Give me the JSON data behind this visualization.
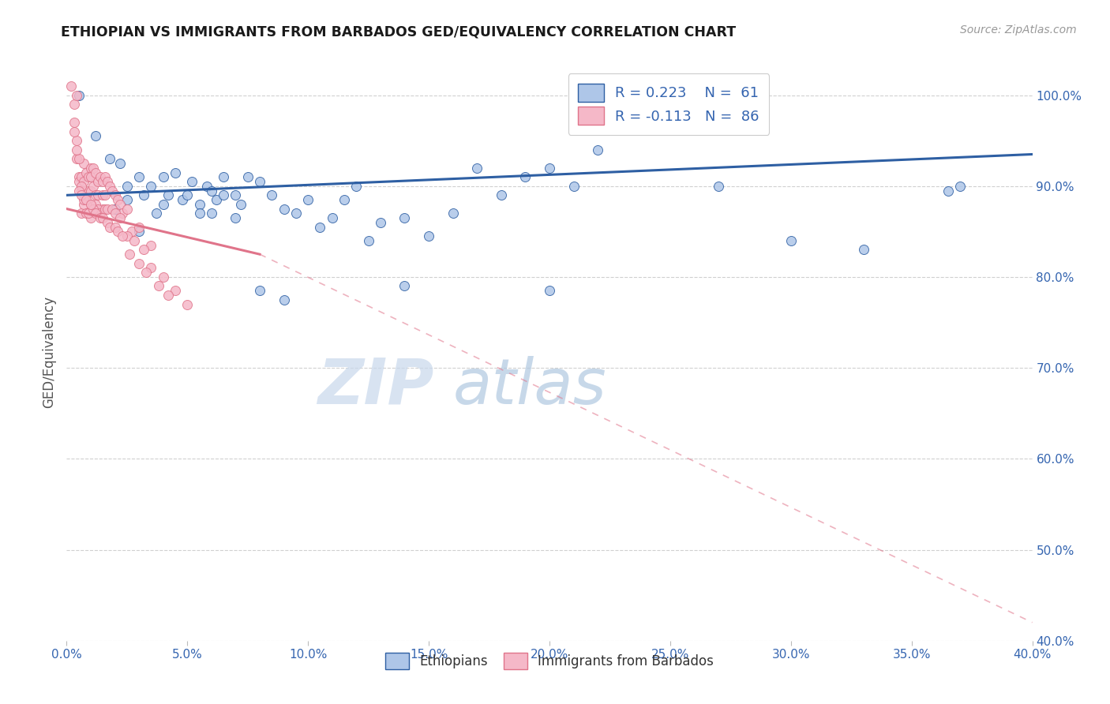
{
  "title": "ETHIOPIAN VS IMMIGRANTS FROM BARBADOS GED/EQUIVALENCY CORRELATION CHART",
  "source": "Source: ZipAtlas.com",
  "ylabel": "GED/Equivalency",
  "yticks": [
    40.0,
    50.0,
    60.0,
    70.0,
    80.0,
    90.0,
    100.0
  ],
  "xticks": [
    0.0,
    5.0,
    10.0,
    15.0,
    20.0,
    25.0,
    30.0,
    35.0,
    40.0
  ],
  "xlim": [
    0.0,
    40.0
  ],
  "ylim": [
    40.0,
    103.5
  ],
  "blue_color": "#aec6e8",
  "pink_color": "#f5b8c8",
  "blue_line_color": "#2e5fa3",
  "pink_line_color": "#e0748a",
  "blue_trend_x0": 0.0,
  "blue_trend_y0": 89.0,
  "blue_trend_x1": 40.0,
  "blue_trend_y1": 93.5,
  "pink_solid_x0": 0.0,
  "pink_solid_y0": 87.5,
  "pink_solid_x1": 8.0,
  "pink_solid_y1": 82.5,
  "pink_dash_x0": 8.0,
  "pink_dash_y0": 82.5,
  "pink_dash_x1": 40.0,
  "pink_dash_y1": 42.0,
  "blue_x": [
    0.5,
    1.2,
    1.8,
    2.2,
    2.5,
    2.5,
    3.0,
    3.2,
    3.5,
    3.7,
    4.0,
    4.2,
    4.5,
    4.8,
    5.0,
    5.2,
    5.5,
    5.8,
    6.0,
    6.2,
    6.5,
    6.5,
    7.0,
    7.2,
    7.5,
    8.0,
    8.5,
    9.0,
    9.5,
    10.0,
    10.5,
    11.0,
    11.5,
    12.0,
    12.5,
    13.0,
    14.0,
    15.0,
    16.0,
    17.0,
    18.0,
    19.0,
    20.0,
    21.0,
    22.0,
    25.0,
    27.0,
    30.0,
    33.0,
    36.5,
    2.0,
    3.0,
    4.0,
    5.5,
    6.0,
    7.0,
    8.0,
    9.0,
    14.0,
    20.0,
    37.0
  ],
  "blue_y": [
    100.0,
    95.5,
    93.0,
    92.5,
    90.0,
    88.5,
    91.0,
    89.0,
    90.0,
    87.0,
    91.0,
    89.0,
    91.5,
    88.5,
    89.0,
    90.5,
    88.0,
    90.0,
    89.5,
    88.5,
    89.0,
    91.0,
    89.0,
    88.0,
    91.0,
    90.5,
    89.0,
    87.5,
    87.0,
    88.5,
    85.5,
    86.5,
    88.5,
    90.0,
    84.0,
    86.0,
    86.5,
    84.5,
    87.0,
    92.0,
    89.0,
    91.0,
    92.0,
    90.0,
    94.0,
    101.0,
    90.0,
    84.0,
    83.0,
    89.5,
    87.5,
    85.0,
    88.0,
    87.0,
    87.0,
    86.5,
    78.5,
    77.5,
    79.0,
    78.5,
    90.0
  ],
  "pink_x": [
    0.2,
    0.3,
    0.3,
    0.4,
    0.4,
    0.5,
    0.5,
    0.6,
    0.6,
    0.6,
    0.7,
    0.7,
    0.8,
    0.8,
    0.9,
    0.9,
    1.0,
    1.0,
    1.0,
    1.0,
    1.1,
    1.1,
    1.2,
    1.2,
    1.3,
    1.3,
    1.4,
    1.5,
    1.5,
    1.5,
    1.6,
    1.6,
    1.7,
    1.8,
    1.9,
    2.0,
    2.1,
    2.2,
    2.3,
    2.5,
    2.7,
    3.0,
    3.5,
    4.0,
    0.4,
    0.5,
    0.7,
    0.8,
    1.0,
    1.2,
    1.3,
    1.4,
    1.6,
    1.7,
    1.9,
    2.0,
    2.2,
    2.5,
    2.8,
    3.2,
    3.5,
    4.5,
    5.0,
    0.3,
    0.4,
    0.6,
    0.7,
    0.9,
    1.1,
    1.2,
    1.4,
    1.5,
    1.7,
    1.8,
    2.0,
    2.1,
    2.3,
    2.6,
    3.0,
    3.3,
    3.8,
    4.2,
    0.5,
    0.6,
    0.8,
    1.0
  ],
  "pink_y": [
    101.0,
    99.0,
    97.0,
    100.0,
    93.0,
    91.0,
    90.5,
    91.0,
    89.5,
    87.0,
    92.5,
    90.5,
    91.5,
    89.0,
    91.0,
    89.5,
    92.0,
    91.0,
    89.5,
    88.0,
    92.0,
    90.0,
    91.5,
    89.0,
    90.5,
    89.0,
    91.0,
    90.5,
    89.0,
    87.5,
    91.0,
    89.0,
    90.5,
    90.0,
    89.5,
    89.0,
    88.5,
    88.0,
    87.0,
    87.5,
    85.0,
    85.5,
    83.5,
    80.0,
    95.0,
    93.0,
    88.0,
    87.0,
    86.5,
    88.0,
    87.5,
    87.0,
    87.5,
    87.5,
    87.5,
    87.0,
    86.5,
    84.5,
    84.0,
    83.0,
    81.0,
    78.5,
    77.0,
    96.0,
    94.0,
    90.0,
    88.5,
    87.0,
    87.5,
    87.0,
    86.5,
    86.5,
    86.0,
    85.5,
    85.5,
    85.0,
    84.5,
    82.5,
    81.5,
    80.5,
    79.0,
    78.0,
    89.5,
    89.0,
    88.5,
    88.0
  ]
}
